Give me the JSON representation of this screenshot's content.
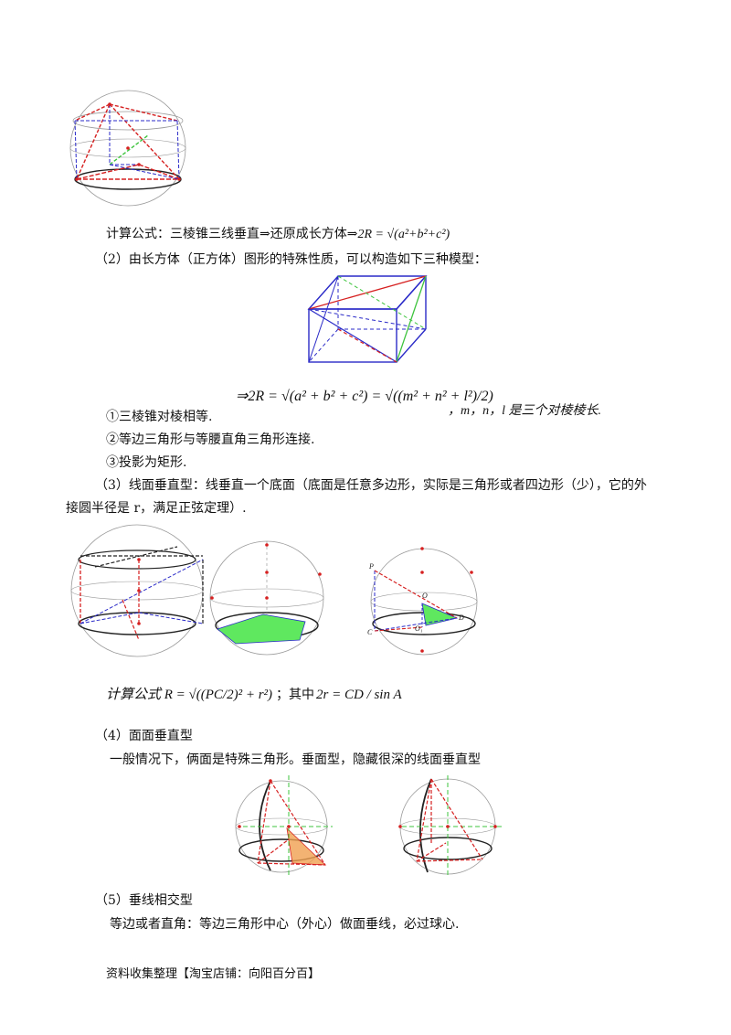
{
  "line1": {
    "text": "计算公式：三棱锥三线垂直⇒还原成长方体⇒",
    "formula": "2R = √(a²+b²+c²)"
  },
  "line2": "（2）由长方体（正方体）图形的特殊性质，可以构造如下三种模型：",
  "box_formula": {
    "formula": "⇒2R = √(a² + b² + c²) = √((m² + n² + l²)/2)",
    "tail": "，m，n，l 是三个对棱棱长."
  },
  "list": [
    "①三棱锥对棱相等.",
    "②等边三角形与等腰直角三角形连接.",
    "③投影为矩形."
  ],
  "para3": {
    "line1": "（3）线面垂直型：线垂直一个底面（底面是任意多边形，实际是三角形或者四边形（少），它的外",
    "line2": "接圆半径是 r，满足正弦定理）."
  },
  "fig_labels": [
    "P",
    "O",
    "O₁",
    "D",
    "C"
  ],
  "formula3": {
    "left": "计算公式 R = √((PC/2)² + r²)",
    "sep": "；其中",
    "right": "2r = CD / sin A"
  },
  "section4": {
    "title": "（4）面面垂直型",
    "text": "一般情况下，俩面是特殊三角形。垂面型，隐藏很深的线面垂直型"
  },
  "section5": {
    "title": "（5）垂线相交型",
    "text": "等边或者直角：等边三角形中心（外心）做面垂线，必过球心."
  },
  "footer": "资料收集整理【淘宝店铺：向阳百分百】",
  "colors": {
    "red": "#d62020",
    "blue": "#2a2ac8",
    "green": "#3ec43e",
    "orange": "#f0a050",
    "gray": "#9a9a9a"
  }
}
